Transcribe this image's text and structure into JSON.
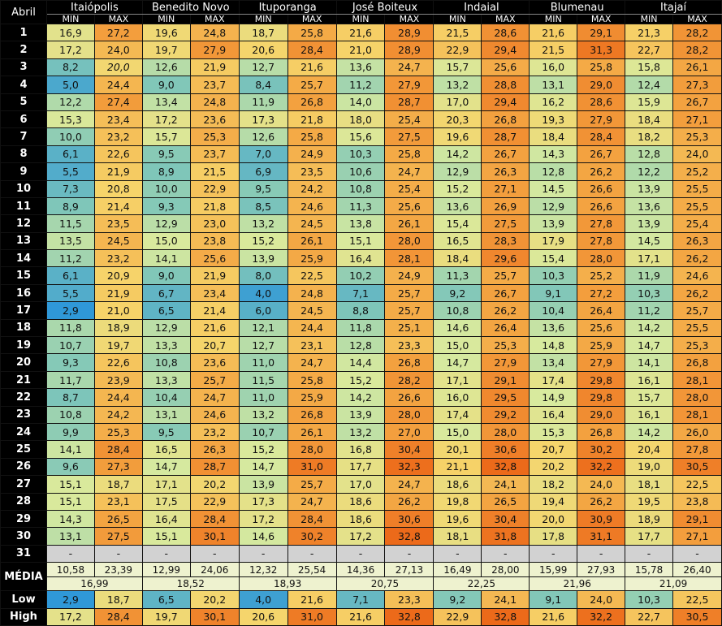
{
  "chart_data": {
    "type": "table",
    "month": "Abril",
    "min_label": "MIN",
    "max_label": "MAX",
    "stations": [
      "Itaiópolis",
      "Benedito Novo",
      "Ituporanga",
      "José Boiteux",
      "Indaial",
      "Blumenau",
      "Itajaí"
    ],
    "days": [
      "1",
      "2",
      "3",
      "4",
      "5",
      "6",
      "7",
      "8",
      "9",
      "10",
      "11",
      "12",
      "13",
      "14",
      "15",
      "16",
      "17",
      "18",
      "19",
      "20",
      "21",
      "22",
      "23",
      "24",
      "25",
      "26",
      "27",
      "28",
      "29",
      "30",
      "31"
    ],
    "rows": [
      [
        "16,9",
        "27,2",
        "19,6",
        "24,8",
        "18,7",
        "25,8",
        "21,6",
        "28,9",
        "21,5",
        "28,6",
        "21,6",
        "29,1",
        "21,3",
        "28,2"
      ],
      [
        "17,2",
        "24,0",
        "19,7",
        "27,9",
        "20,6",
        "28,4",
        "21,0",
        "28,9",
        "22,9",
        "29,4",
        "21,5",
        "31,3",
        "22,7",
        "28,2"
      ],
      [
        "8,2",
        "20,0",
        "12,6",
        "21,9",
        "12,7",
        "21,6",
        "13,6",
        "24,7",
        "15,7",
        "25,6",
        "16,0",
        "25,8",
        "15,8",
        "26,1"
      ],
      [
        "5,0",
        "24,4",
        "9,0",
        "23,7",
        "8,4",
        "25,7",
        "11,2",
        "27,9",
        "13,2",
        "28,8",
        "13,1",
        "29,0",
        "12,4",
        "27,3"
      ],
      [
        "12,2",
        "27,4",
        "13,4",
        "24,8",
        "11,9",
        "26,8",
        "14,0",
        "28,7",
        "17,0",
        "29,4",
        "16,2",
        "28,6",
        "15,9",
        "26,7"
      ],
      [
        "15,3",
        "23,4",
        "17,2",
        "23,6",
        "17,3",
        "21,8",
        "18,0",
        "25,4",
        "20,3",
        "26,8",
        "19,3",
        "27,9",
        "18,4",
        "27,1"
      ],
      [
        "10,0",
        "23,2",
        "15,7",
        "25,3",
        "12,6",
        "25,8",
        "15,6",
        "27,5",
        "19,6",
        "28,7",
        "18,4",
        "28,4",
        "18,2",
        "25,3"
      ],
      [
        "6,1",
        "22,6",
        "9,5",
        "23,7",
        "7,0",
        "24,9",
        "10,3",
        "25,8",
        "14,2",
        "26,7",
        "14,3",
        "26,7",
        "12,8",
        "24,0"
      ],
      [
        "5,5",
        "21,9",
        "8,9",
        "21,5",
        "6,9",
        "23,5",
        "10,6",
        "24,7",
        "12,9",
        "26,3",
        "12,8",
        "26,2",
        "12,2",
        "25,2"
      ],
      [
        "7,3",
        "20,8",
        "10,0",
        "22,9",
        "9,5",
        "24,2",
        "10,8",
        "25,4",
        "15,2",
        "27,1",
        "14,5",
        "26,6",
        "13,9",
        "25,5"
      ],
      [
        "8,9",
        "21,4",
        "9,3",
        "21,8",
        "8,5",
        "24,6",
        "11,3",
        "25,6",
        "13,6",
        "26,9",
        "12,9",
        "26,6",
        "13,6",
        "25,5"
      ],
      [
        "11,5",
        "23,5",
        "12,9",
        "23,0",
        "13,2",
        "24,5",
        "13,8",
        "26,1",
        "15,4",
        "27,5",
        "13,9",
        "27,8",
        "13,9",
        "25,4"
      ],
      [
        "13,5",
        "24,5",
        "15,0",
        "23,8",
        "15,2",
        "26,1",
        "15,1",
        "28,0",
        "16,5",
        "28,3",
        "17,9",
        "27,8",
        "14,5",
        "26,3"
      ],
      [
        "11,2",
        "23,2",
        "14,1",
        "25,6",
        "13,9",
        "25,9",
        "16,4",
        "28,1",
        "18,4",
        "29,6",
        "15,4",
        "28,0",
        "17,1",
        "26,2"
      ],
      [
        "6,1",
        "20,9",
        "9,0",
        "21,9",
        "8,0",
        "22,5",
        "10,2",
        "24,9",
        "11,3",
        "25,7",
        "10,3",
        "25,2",
        "11,9",
        "24,6"
      ],
      [
        "5,5",
        "21,9",
        "6,7",
        "23,4",
        "4,0",
        "24,8",
        "7,1",
        "25,7",
        "9,2",
        "26,7",
        "9,1",
        "27,2",
        "10,3",
        "26,2"
      ],
      [
        "2,9",
        "21,0",
        "6,5",
        "21,4",
        "6,0",
        "24,5",
        "8,8",
        "25,7",
        "10,8",
        "26,2",
        "10,4",
        "26,4",
        "11,2",
        "25,7"
      ],
      [
        "11,8",
        "18,9",
        "12,9",
        "21,6",
        "12,1",
        "24,4",
        "11,8",
        "25,1",
        "14,6",
        "26,4",
        "13,6",
        "25,6",
        "14,2",
        "25,5"
      ],
      [
        "10,7",
        "19,7",
        "13,3",
        "20,7",
        "12,7",
        "23,1",
        "12,8",
        "23,3",
        "15,0",
        "25,3",
        "14,8",
        "25,9",
        "14,7",
        "25,3"
      ],
      [
        "9,3",
        "22,6",
        "10,8",
        "23,6",
        "11,0",
        "24,7",
        "14,4",
        "26,8",
        "14,7",
        "27,9",
        "13,4",
        "27,9",
        "14,1",
        "26,8"
      ],
      [
        "11,7",
        "23,9",
        "13,3",
        "25,7",
        "11,5",
        "25,8",
        "15,2",
        "28,2",
        "17,1",
        "29,1",
        "17,4",
        "29,8",
        "16,1",
        "28,1"
      ],
      [
        "8,7",
        "24,4",
        "10,4",
        "24,7",
        "11,0",
        "25,9",
        "14,2",
        "26,6",
        "16,0",
        "29,5",
        "14,9",
        "29,8",
        "15,7",
        "28,0"
      ],
      [
        "10,8",
        "24,2",
        "13,1",
        "24,6",
        "13,2",
        "26,8",
        "13,9",
        "28,0",
        "17,4",
        "29,2",
        "16,4",
        "29,0",
        "16,1",
        "28,1"
      ],
      [
        "9,9",
        "25,3",
        "9,5",
        "23,2",
        "10,7",
        "26,1",
        "13,2",
        "27,0",
        "15,0",
        "28,0",
        "15,3",
        "26,8",
        "14,2",
        "26,0"
      ],
      [
        "14,1",
        "28,4",
        "16,5",
        "26,3",
        "15,2",
        "28,0",
        "16,8",
        "30,4",
        "20,1",
        "30,6",
        "20,7",
        "30,2",
        "20,4",
        "27,8"
      ],
      [
        "9,6",
        "27,3",
        "14,7",
        "28,7",
        "14,7",
        "31,0",
        "17,7",
        "32,3",
        "21,1",
        "32,8",
        "20,2",
        "32,2",
        "19,0",
        "30,5"
      ],
      [
        "15,1",
        "18,7",
        "17,1",
        "20,2",
        "13,9",
        "25,7",
        "17,0",
        "24,7",
        "18,6",
        "24,1",
        "18,2",
        "24,0",
        "18,1",
        "22,5"
      ],
      [
        "15,1",
        "23,1",
        "17,5",
        "22,9",
        "17,3",
        "24,7",
        "18,6",
        "26,2",
        "19,8",
        "26,5",
        "19,4",
        "26,2",
        "19,5",
        "23,8"
      ],
      [
        "14,3",
        "26,5",
        "16,4",
        "28,4",
        "17,2",
        "28,4",
        "18,6",
        "30,6",
        "19,6",
        "30,4",
        "20,0",
        "30,9",
        "18,9",
        "29,1"
      ],
      [
        "13,1",
        "27,5",
        "15,1",
        "30,1",
        "14,6",
        "30,2",
        "17,2",
        "32,8",
        "18,1",
        "31,8",
        "17,8",
        "31,1",
        "17,7",
        "27,1"
      ],
      [
        "-",
        "-",
        "-",
        "-",
        "-",
        "-",
        "-",
        "-",
        "-",
        "-",
        "-",
        "-",
        "-",
        "-"
      ]
    ],
    "media_label": "MÉDIA",
    "media": [
      "10,58",
      "23,39",
      "12,99",
      "24,06",
      "12,32",
      "25,54",
      "14,36",
      "27,13",
      "16,49",
      "28,00",
      "15,99",
      "27,93",
      "15,78",
      "26,40"
    ],
    "media_overall": [
      "16,99",
      "18,52",
      "18,93",
      "20,75",
      "22,25",
      "21,96",
      "21,09"
    ],
    "low_label": "Low",
    "low": [
      "2,9",
      "18,7",
      "6,5",
      "20,2",
      "4,0",
      "21,6",
      "7,1",
      "23,3",
      "9,2",
      "24,1",
      "9,1",
      "24,0",
      "10,3",
      "22,5"
    ],
    "high_label": "High",
    "high": [
      "17,2",
      "28,4",
      "19,7",
      "30,1",
      "20,6",
      "31,0",
      "21,6",
      "32,8",
      "22,9",
      "32,8",
      "21,6",
      "32,2",
      "22,7",
      "30,5"
    ],
    "italic_cells": [
      [
        2,
        1
      ]
    ],
    "color_scale": {
      "low": 2.9,
      "high": 32.8,
      "colors": [
        "#2f98d8",
        "#7fc6b9",
        "#d8ea9e",
        "#f6d46a",
        "#f3a13f",
        "#ec6a1a"
      ]
    }
  }
}
